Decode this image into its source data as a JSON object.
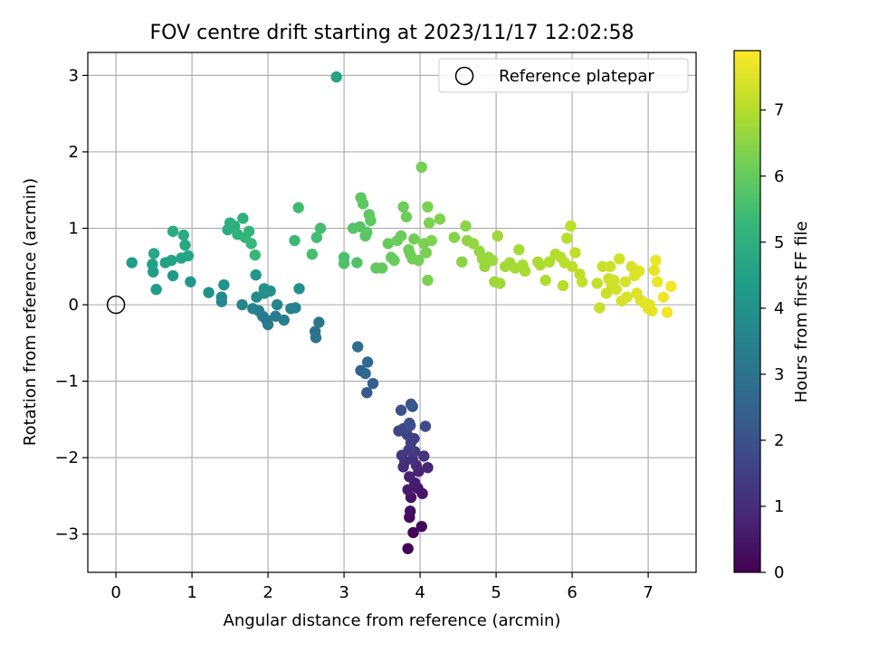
{
  "chart_data": {
    "type": "scatter",
    "title": "FOV centre drift starting at 2023/11/17 12:02:58",
    "xlabel": "Angular distance from reference (arcmin)",
    "ylabel": "Rotation from reference (arcmin)",
    "xlim": [
      -0.37,
      7.63
    ],
    "ylim": [
      -3.5,
      3.3
    ],
    "xticks": [
      0,
      1,
      2,
      3,
      4,
      5,
      6,
      7
    ],
    "yticks": [
      -3,
      -2,
      -1,
      0,
      1,
      2,
      3
    ],
    "xtick_labels": [
      "0",
      "1",
      "2",
      "3",
      "4",
      "5",
      "6",
      "7"
    ],
    "ytick_labels": [
      "−3",
      "−2",
      "−1",
      "0",
      "1",
      "2",
      "3"
    ],
    "grid": true,
    "legend": {
      "position": "top-right",
      "entries": [
        "Reference platepar"
      ]
    },
    "colorbar": {
      "label": "Hours from first FF file",
      "range": [
        0,
        7.9
      ],
      "ticks": [
        0,
        1,
        2,
        3,
        4,
        5,
        6,
        7
      ],
      "tick_labels": [
        "0",
        "1",
        "2",
        "3",
        "4",
        "5",
        "6",
        "7"
      ],
      "colormap": "viridis"
    },
    "reference": {
      "x": 0,
      "y": 0
    },
    "colormap_stops": [
      "#440154",
      "#482878",
      "#3e4989",
      "#31688e",
      "#26828e",
      "#1f9e89",
      "#35b779",
      "#6ece58",
      "#b5de2b",
      "#fde725"
    ],
    "points": [
      {
        "x": 3.84,
        "y": -3.19,
        "h": 0.05
      },
      {
        "x": 3.91,
        "y": -2.98,
        "h": 0.12
      },
      {
        "x": 4.02,
        "y": -2.9,
        "h": 0.18
      },
      {
        "x": 3.86,
        "y": -2.78,
        "h": 0.25
      },
      {
        "x": 3.87,
        "y": -2.7,
        "h": 0.32
      },
      {
        "x": 3.88,
        "y": -2.52,
        "h": 0.38
      },
      {
        "x": 4.03,
        "y": -2.47,
        "h": 0.45
      },
      {
        "x": 3.97,
        "y": -2.4,
        "h": 0.52
      },
      {
        "x": 3.84,
        "y": -2.42,
        "h": 0.58
      },
      {
        "x": 3.93,
        "y": -2.33,
        "h": 0.65
      },
      {
        "x": 3.86,
        "y": -2.25,
        "h": 0.72
      },
      {
        "x": 3.98,
        "y": -2.18,
        "h": 0.78
      },
      {
        "x": 4.1,
        "y": -2.13,
        "h": 0.85
      },
      {
        "x": 3.95,
        "y": -2.1,
        "h": 0.92
      },
      {
        "x": 3.78,
        "y": -2.12,
        "h": 0.98
      },
      {
        "x": 3.8,
        "y": -2.05,
        "h": 1.05
      },
      {
        "x": 3.9,
        "y": -2.02,
        "h": 1.12
      },
      {
        "x": 4.05,
        "y": -1.98,
        "h": 1.18
      },
      {
        "x": 3.76,
        "y": -1.97,
        "h": 1.25
      },
      {
        "x": 3.93,
        "y": -1.92,
        "h": 1.32
      },
      {
        "x": 3.85,
        "y": -1.9,
        "h": 1.38
      },
      {
        "x": 3.88,
        "y": -1.8,
        "h": 1.45
      },
      {
        "x": 3.92,
        "y": -1.75,
        "h": 1.52
      },
      {
        "x": 3.83,
        "y": -1.7,
        "h": 1.58
      },
      {
        "x": 3.72,
        "y": -1.65,
        "h": 1.65
      },
      {
        "x": 3.78,
        "y": -1.62,
        "h": 1.72
      },
      {
        "x": 3.87,
        "y": -1.58,
        "h": 1.78
      },
      {
        "x": 4.07,
        "y": -1.59,
        "h": 1.85
      },
      {
        "x": 3.86,
        "y": -1.55,
        "h": 1.92
      },
      {
        "x": 3.75,
        "y": -1.38,
        "h": 1.98
      },
      {
        "x": 3.9,
        "y": -1.33,
        "h": 2.05
      },
      {
        "x": 3.88,
        "y": -1.3,
        "h": 2.12
      },
      {
        "x": 3.3,
        "y": -1.15,
        "h": 2.25
      },
      {
        "x": 3.38,
        "y": -1.03,
        "h": 2.38
      },
      {
        "x": 3.22,
        "y": -0.86,
        "h": 2.5
      },
      {
        "x": 3.28,
        "y": -0.9,
        "h": 2.62
      },
      {
        "x": 3.31,
        "y": -0.75,
        "h": 2.75
      },
      {
        "x": 3.18,
        "y": -0.55,
        "h": 2.88
      },
      {
        "x": 2.63,
        "y": -0.43,
        "h": 3.0
      },
      {
        "x": 2.62,
        "y": -0.35,
        "h": 3.05
      },
      {
        "x": 2.67,
        "y": -0.23,
        "h": 3.1
      },
      {
        "x": 2.0,
        "y": -0.26,
        "h": 3.15
      },
      {
        "x": 1.98,
        "y": -0.2,
        "h": 3.2
      },
      {
        "x": 1.93,
        "y": -0.15,
        "h": 3.25
      },
      {
        "x": 2.1,
        "y": -0.15,
        "h": 3.3
      },
      {
        "x": 2.21,
        "y": -0.2,
        "h": 3.35
      },
      {
        "x": 1.88,
        "y": -0.08,
        "h": 3.4
      },
      {
        "x": 1.8,
        "y": -0.05,
        "h": 3.45
      },
      {
        "x": 2.3,
        "y": -0.05,
        "h": 3.5
      },
      {
        "x": 2.36,
        "y": -0.04,
        "h": 3.55
      },
      {
        "x": 2.12,
        "y": 0.0,
        "h": 3.6
      },
      {
        "x": 1.66,
        "y": -0.0,
        "h": 3.65
      },
      {
        "x": 1.39,
        "y": 0.04,
        "h": 3.7
      },
      {
        "x": 1.39,
        "y": 0.1,
        "h": 3.75
      },
      {
        "x": 1.85,
        "y": 0.1,
        "h": 3.8
      },
      {
        "x": 1.95,
        "y": 0.15,
        "h": 3.85
      },
      {
        "x": 2.03,
        "y": 0.18,
        "h": 3.9
      },
      {
        "x": 2.41,
        "y": 0.21,
        "h": 3.95
      },
      {
        "x": 1.95,
        "y": 0.21,
        "h": 4.0
      },
      {
        "x": 1.22,
        "y": 0.16,
        "h": 4.05
      },
      {
        "x": 1.42,
        "y": 0.26,
        "h": 4.1
      },
      {
        "x": 0.98,
        "y": 0.3,
        "h": 4.15
      },
      {
        "x": 1.84,
        "y": 0.39,
        "h": 4.2
      },
      {
        "x": 0.53,
        "y": 0.2,
        "h": 4.25
      },
      {
        "x": 0.75,
        "y": 0.38,
        "h": 4.3
      },
      {
        "x": 0.49,
        "y": 0.43,
        "h": 4.35
      },
      {
        "x": 0.21,
        "y": 0.55,
        "h": 4.4
      },
      {
        "x": 0.48,
        "y": 0.53,
        "h": 4.45
      },
      {
        "x": 0.65,
        "y": 0.55,
        "h": 4.5
      },
      {
        "x": 0.73,
        "y": 0.58,
        "h": 4.55
      },
      {
        "x": 0.86,
        "y": 0.61,
        "h": 4.6
      },
      {
        "x": 0.95,
        "y": 0.64,
        "h": 4.65
      },
      {
        "x": 0.5,
        "y": 0.67,
        "h": 4.7
      },
      {
        "x": 0.91,
        "y": 0.78,
        "h": 4.75
      },
      {
        "x": 0.89,
        "y": 0.91,
        "h": 4.8
      },
      {
        "x": 0.75,
        "y": 0.96,
        "h": 4.85
      },
      {
        "x": 1.47,
        "y": 0.98,
        "h": 4.9
      },
      {
        "x": 1.56,
        "y": 1.03,
        "h": 4.95
      },
      {
        "x": 1.5,
        "y": 1.07,
        "h": 5.0
      },
      {
        "x": 1.67,
        "y": 1.13,
        "h": 5.05
      },
      {
        "x": 1.6,
        "y": 0.92,
        "h": 5.1
      },
      {
        "x": 1.7,
        "y": 0.88,
        "h": 5.15
      },
      {
        "x": 1.75,
        "y": 0.96,
        "h": 5.2
      },
      {
        "x": 1.78,
        "y": 0.8,
        "h": 5.25
      },
      {
        "x": 1.83,
        "y": 0.65,
        "h": 5.3
      },
      {
        "x": 2.35,
        "y": 0.84,
        "h": 5.35
      },
      {
        "x": 2.4,
        "y": 1.27,
        "h": 5.4
      },
      {
        "x": 2.64,
        "y": 0.88,
        "h": 5.45
      },
      {
        "x": 2.69,
        "y": 1.0,
        "h": 5.5
      },
      {
        "x": 2.58,
        "y": 0.66,
        "h": 5.55
      },
      {
        "x": 2.9,
        "y": 2.98,
        "h": 4.6
      },
      {
        "x": 3.0,
        "y": 0.62,
        "h": 5.6
      },
      {
        "x": 3.0,
        "y": 0.54,
        "h": 5.65
      },
      {
        "x": 3.17,
        "y": 0.55,
        "h": 5.7
      },
      {
        "x": 3.12,
        "y": 1.0,
        "h": 5.75
      },
      {
        "x": 3.21,
        "y": 1.02,
        "h": 5.78
      },
      {
        "x": 3.28,
        "y": 0.9,
        "h": 5.8
      },
      {
        "x": 3.3,
        "y": 0.95,
        "h": 5.83
      },
      {
        "x": 3.22,
        "y": 1.4,
        "h": 5.85
      },
      {
        "x": 3.25,
        "y": 1.32,
        "h": 5.88
      },
      {
        "x": 3.33,
        "y": 1.18,
        "h": 5.9
      },
      {
        "x": 3.35,
        "y": 1.1,
        "h": 5.92
      },
      {
        "x": 3.42,
        "y": 0.48,
        "h": 5.95
      },
      {
        "x": 3.5,
        "y": 0.48,
        "h": 5.97
      },
      {
        "x": 3.58,
        "y": 0.8,
        "h": 6.0
      },
      {
        "x": 3.62,
        "y": 0.62,
        "h": 6.02
      },
      {
        "x": 3.66,
        "y": 0.58,
        "h": 6.04
      },
      {
        "x": 3.7,
        "y": 0.84,
        "h": 6.06
      },
      {
        "x": 3.75,
        "y": 0.9,
        "h": 6.08
      },
      {
        "x": 3.78,
        "y": 1.28,
        "h": 6.1
      },
      {
        "x": 3.82,
        "y": 1.15,
        "h": 6.12
      },
      {
        "x": 3.85,
        "y": 0.72,
        "h": 6.14
      },
      {
        "x": 3.87,
        "y": 0.66,
        "h": 6.16
      },
      {
        "x": 3.9,
        "y": 0.6,
        "h": 6.18
      },
      {
        "x": 3.92,
        "y": 0.86,
        "h": 6.2
      },
      {
        "x": 3.98,
        "y": 0.58,
        "h": 6.22
      },
      {
        "x": 4.02,
        "y": 1.8,
        "h": 6.24
      },
      {
        "x": 4.05,
        "y": 0.8,
        "h": 6.26
      },
      {
        "x": 4.08,
        "y": 0.68,
        "h": 6.28
      },
      {
        "x": 4.1,
        "y": 1.28,
        "h": 6.3
      },
      {
        "x": 4.1,
        "y": 0.32,
        "h": 6.32
      },
      {
        "x": 4.12,
        "y": 1.07,
        "h": 6.34
      },
      {
        "x": 4.15,
        "y": 0.84,
        "h": 6.36
      },
      {
        "x": 4.26,
        "y": 1.12,
        "h": 6.38
      },
      {
        "x": 4.45,
        "y": 0.88,
        "h": 6.4
      },
      {
        "x": 4.55,
        "y": 0.56,
        "h": 6.45
      },
      {
        "x": 4.6,
        "y": 1.03,
        "h": 6.5
      },
      {
        "x": 4.62,
        "y": 0.84,
        "h": 6.55
      },
      {
        "x": 4.7,
        "y": 0.8,
        "h": 6.6
      },
      {
        "x": 4.78,
        "y": 0.7,
        "h": 6.62
      },
      {
        "x": 4.82,
        "y": 0.6,
        "h": 6.64
      },
      {
        "x": 4.85,
        "y": 0.5,
        "h": 6.66
      },
      {
        "x": 4.9,
        "y": 0.62,
        "h": 6.68
      },
      {
        "x": 4.95,
        "y": 0.58,
        "h": 6.7
      },
      {
        "x": 4.98,
        "y": 0.3,
        "h": 6.72
      },
      {
        "x": 5.02,
        "y": 0.9,
        "h": 6.74
      },
      {
        "x": 5.05,
        "y": 0.28,
        "h": 6.76
      },
      {
        "x": 5.12,
        "y": 0.5,
        "h": 6.78
      },
      {
        "x": 5.18,
        "y": 0.55,
        "h": 6.8
      },
      {
        "x": 5.25,
        "y": 0.48,
        "h": 6.82
      },
      {
        "x": 5.3,
        "y": 0.72,
        "h": 6.84
      },
      {
        "x": 5.35,
        "y": 0.52,
        "h": 6.86
      },
      {
        "x": 5.38,
        "y": 0.44,
        "h": 6.88
      },
      {
        "x": 5.55,
        "y": 0.56,
        "h": 6.9
      },
      {
        "x": 5.58,
        "y": 0.52,
        "h": 6.92
      },
      {
        "x": 5.65,
        "y": 0.32,
        "h": 6.95
      },
      {
        "x": 5.7,
        "y": 0.56,
        "h": 6.97
      },
      {
        "x": 5.78,
        "y": 0.66,
        "h": 7.0
      },
      {
        "x": 5.85,
        "y": 0.62,
        "h": 7.02
      },
      {
        "x": 5.88,
        "y": 0.25,
        "h": 7.04
      },
      {
        "x": 5.9,
        "y": 0.55,
        "h": 7.06
      },
      {
        "x": 5.93,
        "y": 0.87,
        "h": 7.08
      },
      {
        "x": 5.98,
        "y": 1.03,
        "h": 7.1
      },
      {
        "x": 6.0,
        "y": 0.5,
        "h": 7.12
      },
      {
        "x": 6.04,
        "y": 0.68,
        "h": 7.14
      },
      {
        "x": 6.1,
        "y": 0.4,
        "h": 7.16
      },
      {
        "x": 6.13,
        "y": 0.3,
        "h": 7.18
      },
      {
        "x": 6.33,
        "y": 0.28,
        "h": 7.2
      },
      {
        "x": 6.36,
        "y": -0.04,
        "h": 7.22
      },
      {
        "x": 6.4,
        "y": 0.5,
        "h": 7.24
      },
      {
        "x": 6.45,
        "y": 0.15,
        "h": 7.26
      },
      {
        "x": 6.48,
        "y": 0.34,
        "h": 7.28
      },
      {
        "x": 6.5,
        "y": 0.5,
        "h": 7.3
      },
      {
        "x": 6.52,
        "y": 0.25,
        "h": 7.32
      },
      {
        "x": 6.55,
        "y": 0.32,
        "h": 7.34
      },
      {
        "x": 6.58,
        "y": 0.2,
        "h": 7.36
      },
      {
        "x": 6.62,
        "y": 0.6,
        "h": 7.38
      },
      {
        "x": 6.65,
        "y": 0.05,
        "h": 7.4
      },
      {
        "x": 6.7,
        "y": 0.3,
        "h": 7.42
      },
      {
        "x": 6.72,
        "y": 0.1,
        "h": 7.44
      },
      {
        "x": 6.78,
        "y": 0.5,
        "h": 7.46
      },
      {
        "x": 6.82,
        "y": 0.38,
        "h": 7.48
      },
      {
        "x": 6.85,
        "y": 0.15,
        "h": 7.5
      },
      {
        "x": 6.88,
        "y": 0.44,
        "h": 7.52
      },
      {
        "x": 6.9,
        "y": 0.06,
        "h": 7.54
      },
      {
        "x": 6.95,
        "y": 0.02,
        "h": 7.56
      },
      {
        "x": 7.0,
        "y": -0.05,
        "h": 7.58
      },
      {
        "x": 7.02,
        "y": 0.0,
        "h": 7.6
      },
      {
        "x": 7.05,
        "y": -0.08,
        "h": 7.62
      },
      {
        "x": 7.08,
        "y": 0.45,
        "h": 7.64
      },
      {
        "x": 7.1,
        "y": 0.58,
        "h": 7.66
      },
      {
        "x": 7.12,
        "y": 0.3,
        "h": 7.68
      },
      {
        "x": 7.2,
        "y": 0.1,
        "h": 7.72
      },
      {
        "x": 7.25,
        "y": -0.1,
        "h": 7.76
      },
      {
        "x": 7.3,
        "y": 0.24,
        "h": 7.8
      }
    ]
  }
}
